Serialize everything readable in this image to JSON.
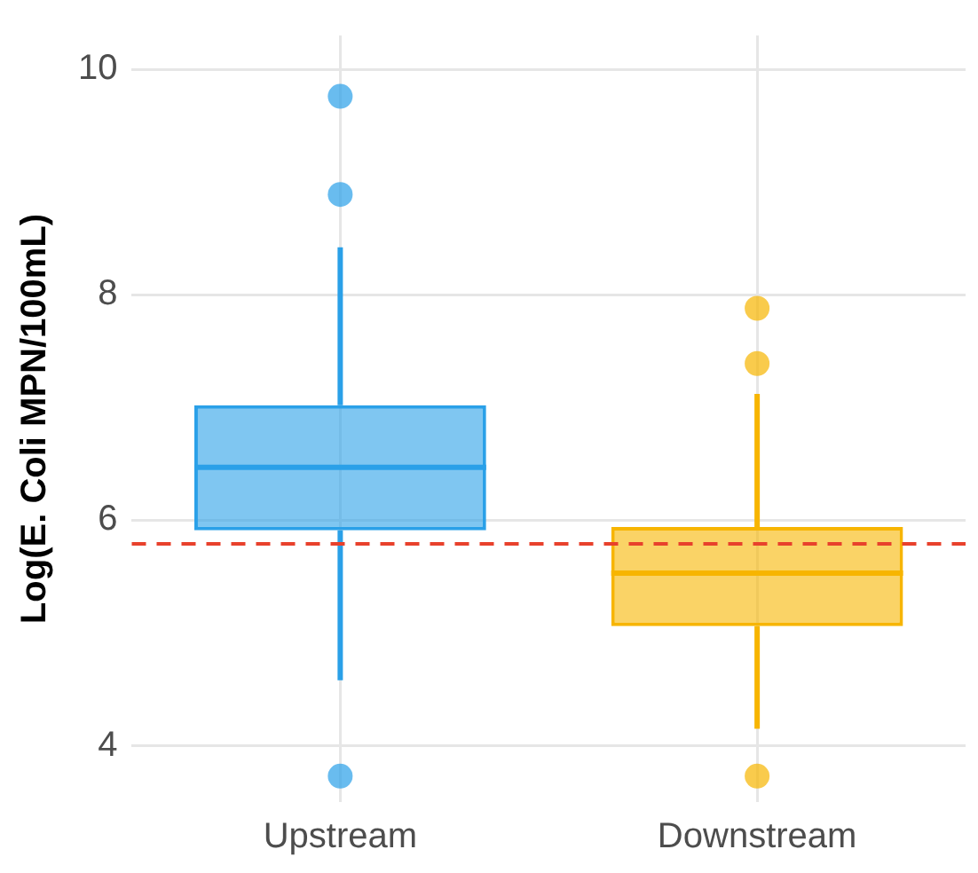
{
  "chart_data": {
    "type": "box",
    "ylabel": "Log(E. Coli MPN/100mL)",
    "categories": [
      "Upstream",
      "Downstream"
    ],
    "colors": [
      "#2aa0e8",
      "#f7b500"
    ],
    "boxes": [
      {
        "low": 4.58,
        "q1": 5.91,
        "median": 6.47,
        "q3": 7.02,
        "high": 8.42,
        "outliers": [
          9.76,
          8.89,
          3.73
        ]
      },
      {
        "low": 4.15,
        "q1": 5.06,
        "median": 5.53,
        "q3": 5.94,
        "high": 7.12,
        "outliers": [
          7.88,
          7.39,
          3.73
        ]
      }
    ],
    "ylim": [
      3.5,
      10.3
    ],
    "yticks": [
      4,
      6,
      8,
      10
    ],
    "grid": true,
    "legend": false,
    "ref_lines": [
      {
        "axis": "y",
        "value": 5.79,
        "color": "#e8412c",
        "line_style": "dashed"
      }
    ]
  }
}
